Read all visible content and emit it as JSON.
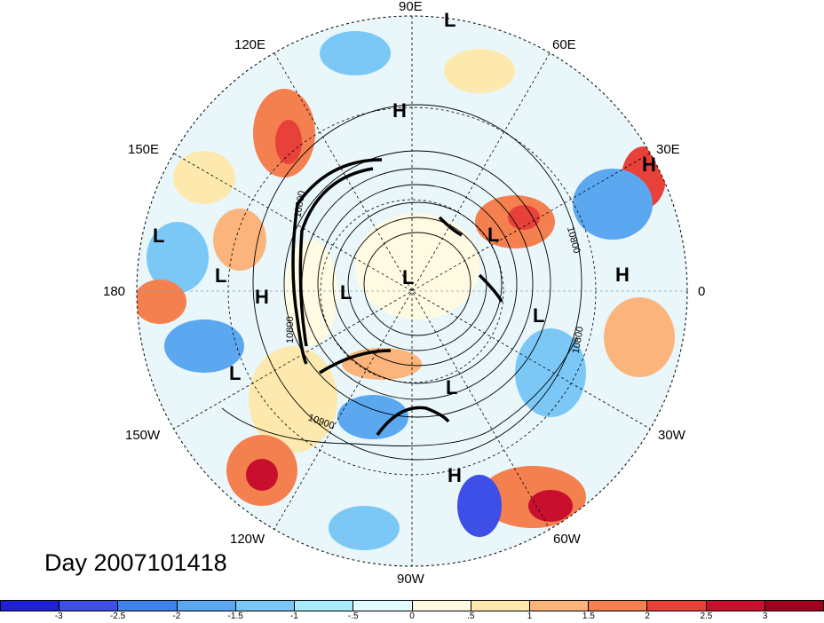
{
  "title": "Day 2007101418",
  "map": {
    "projection": "north-polar-stereographic",
    "longitude_labels": [
      "90E",
      "60E",
      "30E",
      "0",
      "30W",
      "60W",
      "90W",
      "120W",
      "150W",
      "180",
      "150E",
      "120E"
    ],
    "contour_labels": [
      "10800",
      "10800",
      "10800",
      "10800",
      "10900"
    ],
    "pressure_centers": [
      {
        "type": "L"
      },
      {
        "type": "H"
      },
      {
        "type": "H"
      },
      {
        "type": "L"
      },
      {
        "type": "H"
      },
      {
        "type": "L"
      },
      {
        "type": "L"
      },
      {
        "type": "L"
      },
      {
        "type": "L"
      },
      {
        "type": "L"
      },
      {
        "type": "H"
      },
      {
        "type": "L"
      },
      {
        "type": "L"
      },
      {
        "type": "H"
      }
    ]
  },
  "colorbar": {
    "colors": [
      "#1f1fd6",
      "#3d4fe6",
      "#3f82e8",
      "#5ba7f0",
      "#7bc8f6",
      "#a8ecfb",
      "#e2fbff",
      "#fffbe2",
      "#fde9ad",
      "#fbb57c",
      "#f4804f",
      "#e8413a",
      "#c8102e",
      "#a0001e"
    ],
    "tick_labels": [
      "-3",
      "-2.5",
      "-2",
      "-1.5",
      "-1",
      "-.5",
      "0",
      ".5",
      "1",
      "1.5",
      "2",
      "2.5",
      "3"
    ]
  }
}
